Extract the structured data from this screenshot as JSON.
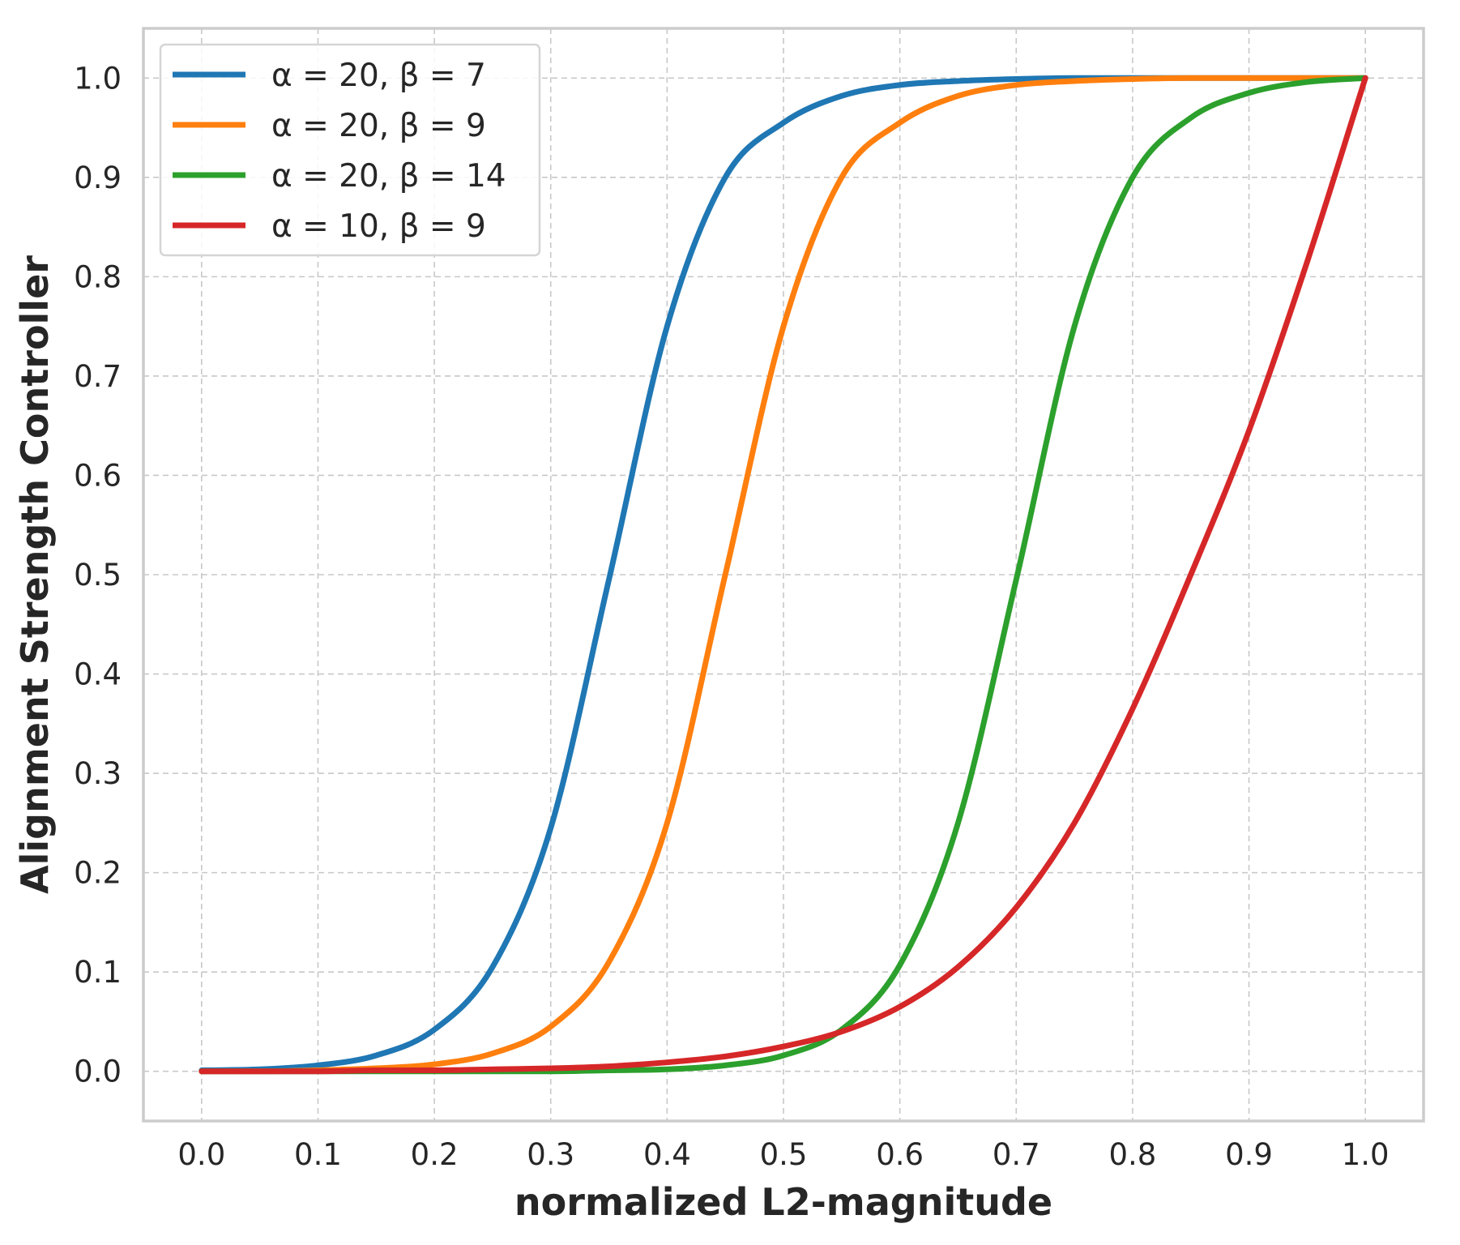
{
  "chart_data": {
    "type": "line",
    "xlabel": "normalized L2-magnitude",
    "ylabel": "Alignment Strength Controller",
    "xlim": [
      -0.05,
      1.05
    ],
    "ylim": [
      -0.05,
      1.05
    ],
    "x_ticks": [
      "0.0",
      "0.1",
      "0.2",
      "0.3",
      "0.4",
      "0.5",
      "0.6",
      "0.7",
      "0.8",
      "0.9",
      "1.0"
    ],
    "y_ticks": [
      "0.0",
      "0.1",
      "0.2",
      "0.3",
      "0.4",
      "0.5",
      "0.6",
      "0.7",
      "0.8",
      "0.9",
      "1.0"
    ],
    "grid": true,
    "legend_position": "top-left",
    "x": [
      0.0,
      0.05,
      0.1,
      0.15,
      0.2,
      0.25,
      0.3,
      0.35,
      0.4,
      0.45,
      0.5,
      0.55,
      0.6,
      0.65,
      0.7,
      0.75,
      0.8,
      0.85,
      0.9,
      0.95,
      1.0
    ],
    "series": [
      {
        "name": "α = 20, β = 7",
        "color": "#1f77b4",
        "values": [
          0.001,
          0.002,
          0.006,
          0.016,
          0.042,
          0.105,
          0.245,
          0.495,
          0.75,
          0.9,
          0.955,
          0.982,
          0.993,
          0.997,
          0.999,
          1.0,
          1.0,
          1.0,
          1.0,
          1.0,
          1.0
        ]
      },
      {
        "name": "α = 20, β = 9",
        "color": "#ff7f0e",
        "values": [
          0.0,
          0.0,
          0.001,
          0.003,
          0.007,
          0.018,
          0.045,
          0.11,
          0.25,
          0.5,
          0.75,
          0.9,
          0.955,
          0.982,
          0.993,
          0.997,
          0.999,
          1.0,
          1.0,
          1.0,
          1.0
        ]
      },
      {
        "name": "α = 20, β = 14",
        "color": "#2ca02c",
        "values": [
          0.0,
          0.0,
          0.0,
          0.0,
          0.0,
          0.0,
          0.0,
          0.001,
          0.002,
          0.006,
          0.016,
          0.042,
          0.107,
          0.25,
          0.495,
          0.75,
          0.9,
          0.96,
          0.985,
          0.996,
          1.0
        ]
      },
      {
        "name": "α = 10, β = 9",
        "color": "#d62728",
        "values": [
          0.0,
          0.0,
          0.0,
          0.001,
          0.001,
          0.002,
          0.003,
          0.005,
          0.009,
          0.015,
          0.025,
          0.04,
          0.065,
          0.105,
          0.165,
          0.25,
          0.365,
          0.5,
          0.645,
          0.815,
          1.0
        ]
      }
    ]
  }
}
